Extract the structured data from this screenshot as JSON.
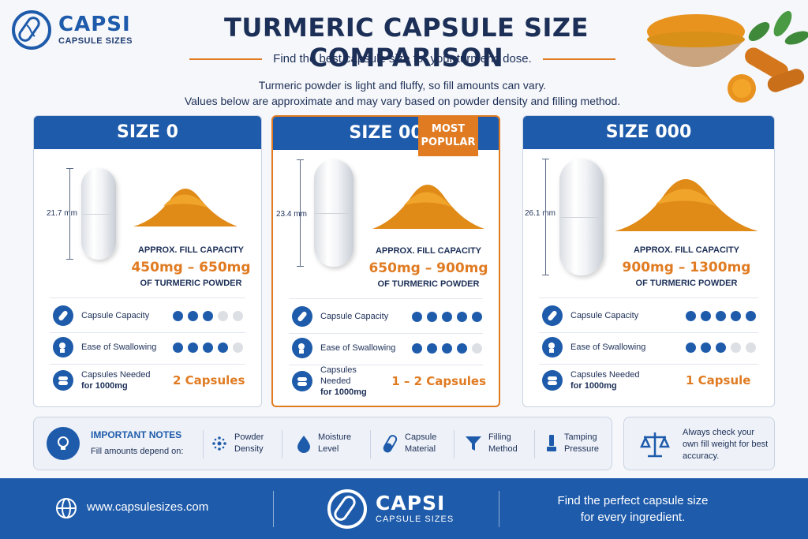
{
  "brand": {
    "name": "CAPSI",
    "sub": "CAPSULE SIZES"
  },
  "header": {
    "title": "TURMERIC CAPSULE SIZE COMPARISON",
    "subtitle": "Find the best capsule size for your turmeric dose.",
    "intro_1": "Turmeric powder is light and fluffy, so fill amounts can vary.",
    "intro_2": "Values below are approximate and may vary based on powder density and filling method."
  },
  "labels": {
    "fill_capacity": "APPROX. FILL CAPACITY",
    "of_powder": "OF TURMERIC POWDER",
    "capsule_capacity": "Capsule Capacity",
    "ease": "Ease of Swallowing",
    "needed_1": "Capsules Needed",
    "needed_2": "for 1000mg"
  },
  "cards": [
    {
      "size": "SIZE 0",
      "length": "21.7 mm",
      "fill": "450mg – 650mg",
      "capacity_rating": 3,
      "ease_rating": 4,
      "needed": "2 Capsules",
      "popular": false
    },
    {
      "size": "SIZE 00",
      "length": "23.4 mm",
      "fill": "650mg – 900mg",
      "capacity_rating": 5,
      "ease_rating": 4,
      "needed": "1 – 2 Capsules",
      "popular": true,
      "badge": "MOST POPULAR"
    },
    {
      "size": "SIZE 000",
      "length": "26.1 mm",
      "fill": "900mg – 1300mg",
      "capacity_rating": 5,
      "ease_rating": 3,
      "needed": "1 Capsule",
      "popular": false
    }
  ],
  "notes": {
    "title": "IMPORTANT NOTES",
    "sub": "Fill amounts depend on:",
    "factors": [
      {
        "l1": "Powder",
        "l2": "Density",
        "icon": "particles-icon"
      },
      {
        "l1": "Moisture",
        "l2": "Level",
        "icon": "droplet-icon"
      },
      {
        "l1": "Capsule",
        "l2": "Material",
        "icon": "capsule-icon"
      },
      {
        "l1": "Filling",
        "l2": "Method",
        "icon": "funnel-icon"
      },
      {
        "l1": "Tamping",
        "l2": "Pressure",
        "icon": "tamper-icon"
      }
    ],
    "check": "Always check your own fill weight for best accuracy."
  },
  "footer": {
    "url": "www.capsulesizes.com",
    "tag_1": "Find the perfect capsule size",
    "tag_2": "for every ingredient."
  },
  "colors": {
    "primary": "#1e5bab",
    "accent": "#e07b22",
    "navy": "#1c2f57"
  }
}
